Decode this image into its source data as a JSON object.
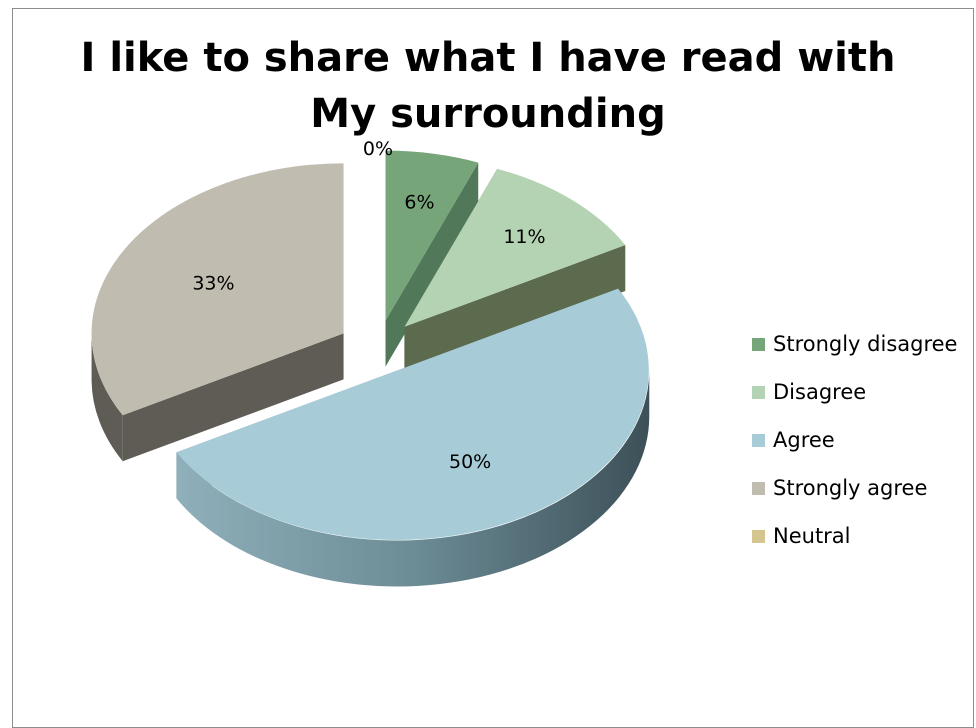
{
  "chart_data": {
    "type": "pie",
    "title_lines": [
      "I like to share what I have read with",
      "My surrounding"
    ],
    "categories": [
      "Strongly disagree",
      "Disagree",
      "Agree",
      "Strongly agree",
      "Neutral"
    ],
    "values": [
      6,
      11,
      50,
      33,
      0
    ],
    "data_labels": [
      "6%",
      "11%",
      "50%",
      "33%",
      "0%"
    ],
    "colors": [
      "#77a57a",
      "#b4d3b2",
      "#a8ccd7",
      "#c0bcaf",
      "#d5c68f"
    ],
    "side_colors": [
      "#52785a",
      "#5c6a4e",
      "#6b8a93",
      "#5f5c55",
      "#8a7f55"
    ],
    "exploded": true,
    "three_d": true,
    "legend_position": "right"
  }
}
